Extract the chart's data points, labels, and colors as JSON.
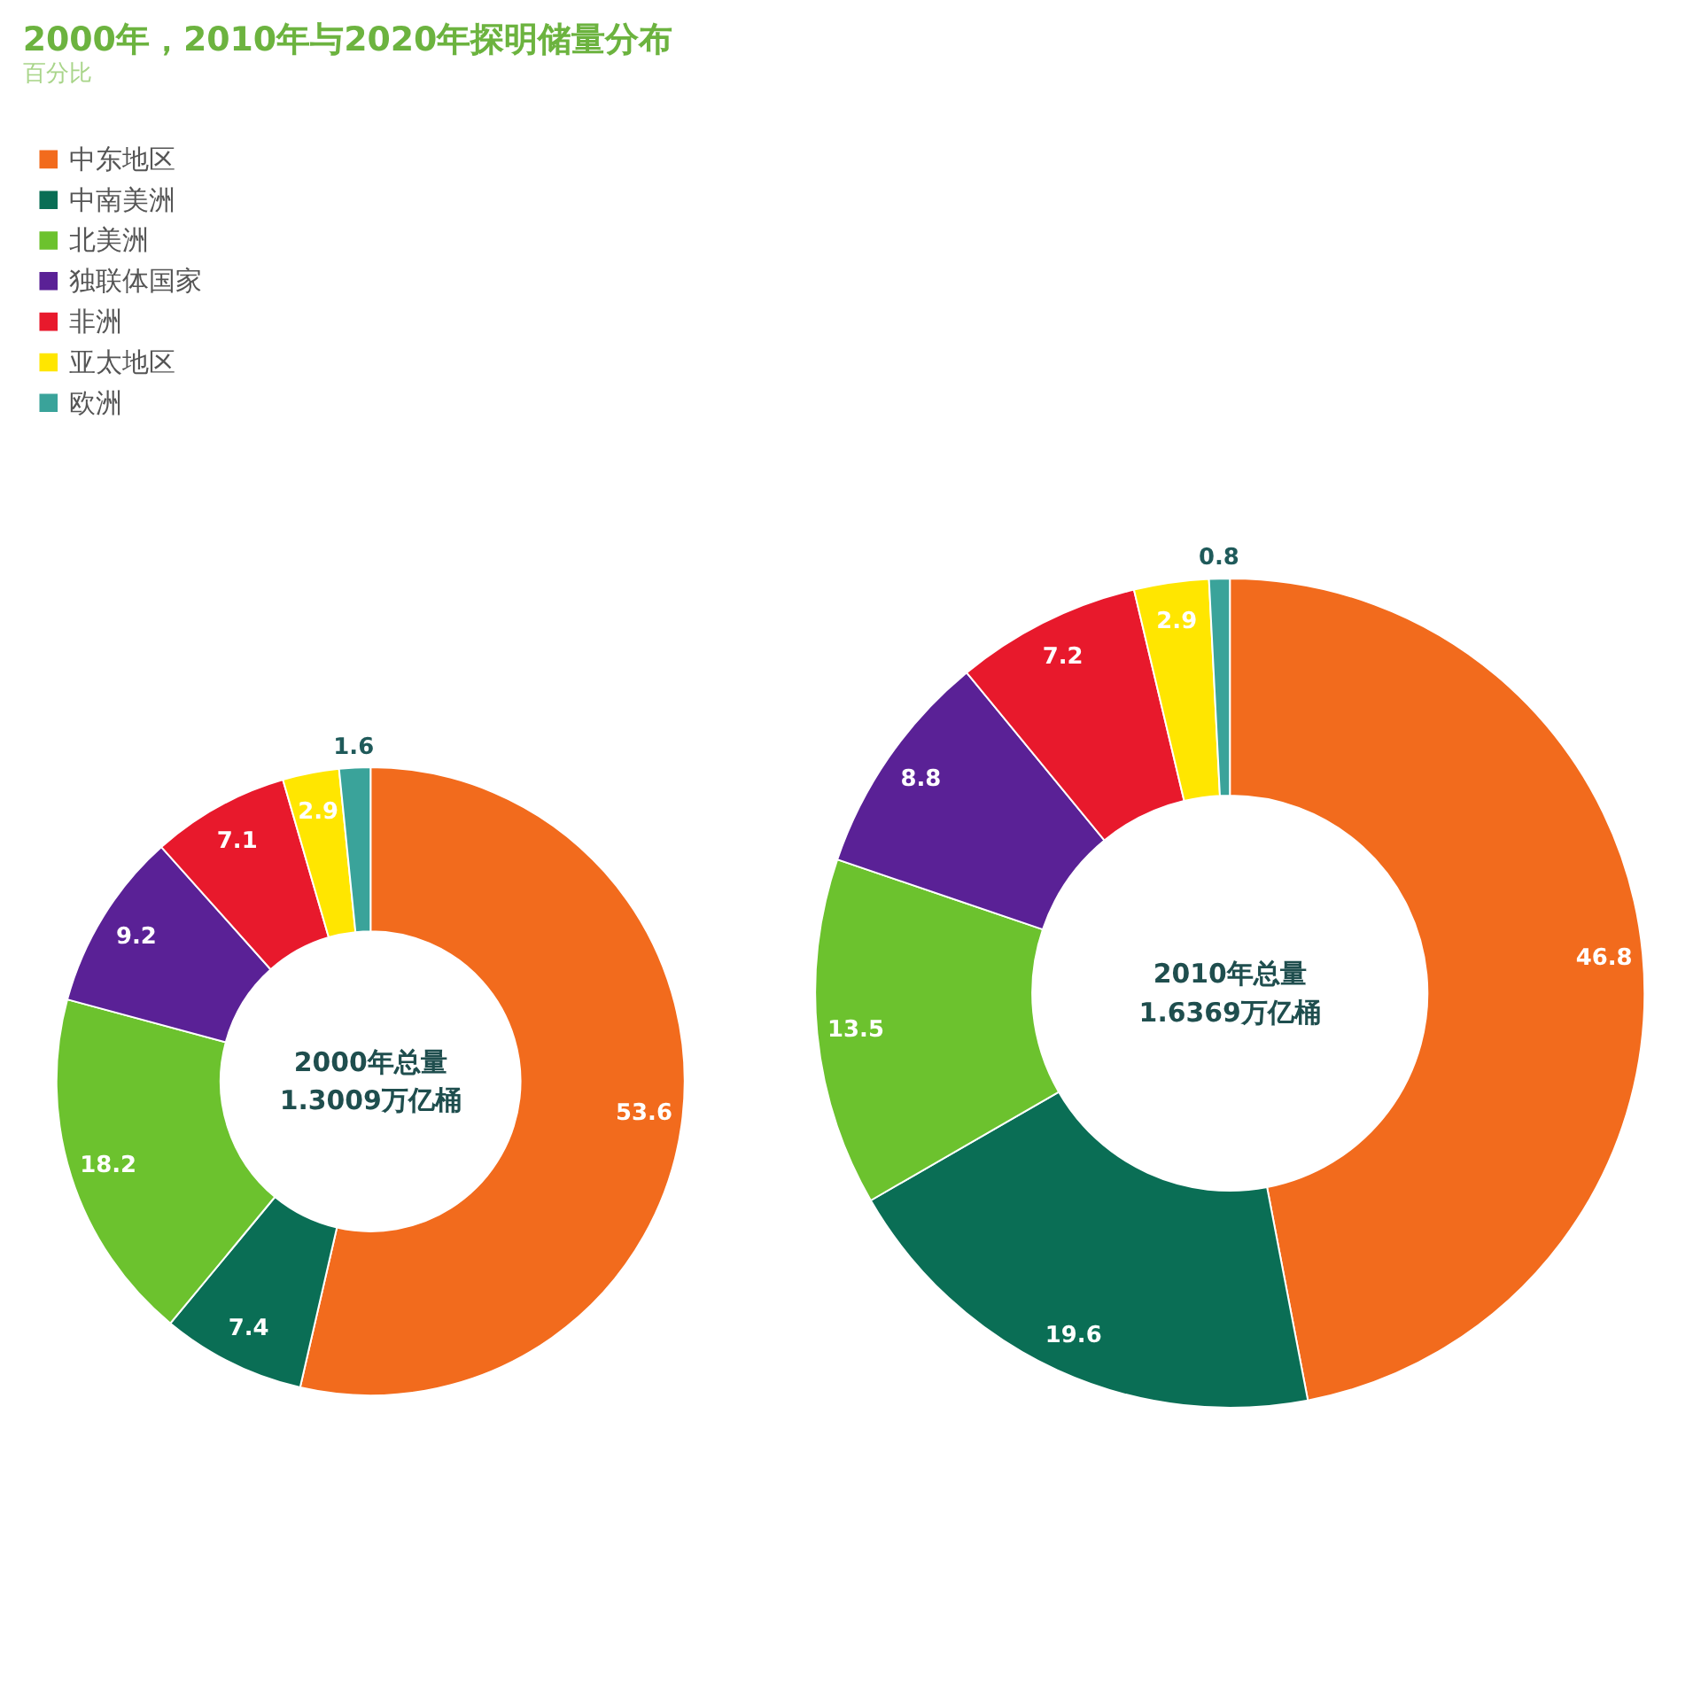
{
  "chart_data": [
    {
      "type": "donut",
      "title": "2000年，2010年与2020年探明储量分布",
      "subtitle": "百分比",
      "legend": "top left",
      "data_labels": true,
      "categories": [
        "中东地区",
        "中南美洲",
        "北美洲",
        "独联体国家",
        "非洲",
        "亚太地区",
        "欧洲"
      ],
      "values": [
        53.6,
        7.4,
        18.2,
        9.2,
        7.1,
        2.9,
        1.6
      ],
      "colors": [
        "#f26b1d",
        "#0a6e55",
        "#6cc22e",
        "#5a2196",
        "#e8192c",
        "#ffe600",
        "#3aa39a"
      ],
      "annotations": [
        "2000年总量",
        "1.3009万亿桶"
      ]
    },
    {
      "type": "donut",
      "data_labels": true,
      "categories": [
        null,
        null,
        null,
        null,
        null,
        null,
        null
      ],
      "values": [
        46.8,
        19.6,
        13.5,
        8.8,
        7.2,
        2.9,
        0.8
      ],
      "colors": [
        "#f26b1d",
        "#0a6e55",
        "#6cc22e",
        "#5a2196",
        "#e8192c",
        "#ffe600",
        "#3aa39a"
      ],
      "annotations": [
        "2010年总量",
        "1.6369万亿桶"
      ]
    }
  ]
}
